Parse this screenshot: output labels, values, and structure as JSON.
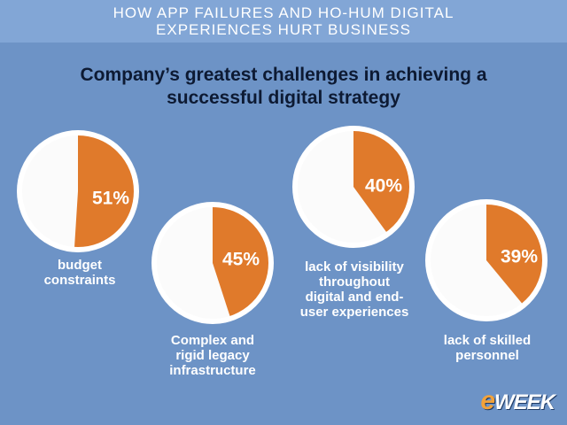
{
  "header": {
    "line1": "HOW APP FAILURES AND HO-HUM DIGITAL",
    "line2": "EXPERIENCES HURT BUSINESS"
  },
  "subtitle": {
    "line1": "Company’s greatest challenges in achieving a",
    "line2": "successful digital strategy"
  },
  "logo": {
    "e": "e",
    "rest": "WEEK"
  },
  "colors": {
    "slice": "#e07a2b",
    "ring": "#ffffff",
    "rest": "#fbfbfb",
    "background": "#6d93c6"
  },
  "chart_data": {
    "type": "pie",
    "title": "Company’s greatest challenges in achieving a successful digital strategy",
    "series": [
      {
        "label": [
          "budget",
          "constraints"
        ],
        "value": 51,
        "display": "51%"
      },
      {
        "label": [
          "Complex and",
          "rigid legacy",
          "infrastructure"
        ],
        "value": 45,
        "display": "45%"
      },
      {
        "label": [
          "lack of visibility",
          "throughout",
          "digital and end-",
          "user experiences"
        ],
        "value": 40,
        "display": "40%"
      },
      {
        "label": [
          "lack of skilled",
          "personnel"
        ],
        "value": 39,
        "display": "39%"
      }
    ]
  }
}
